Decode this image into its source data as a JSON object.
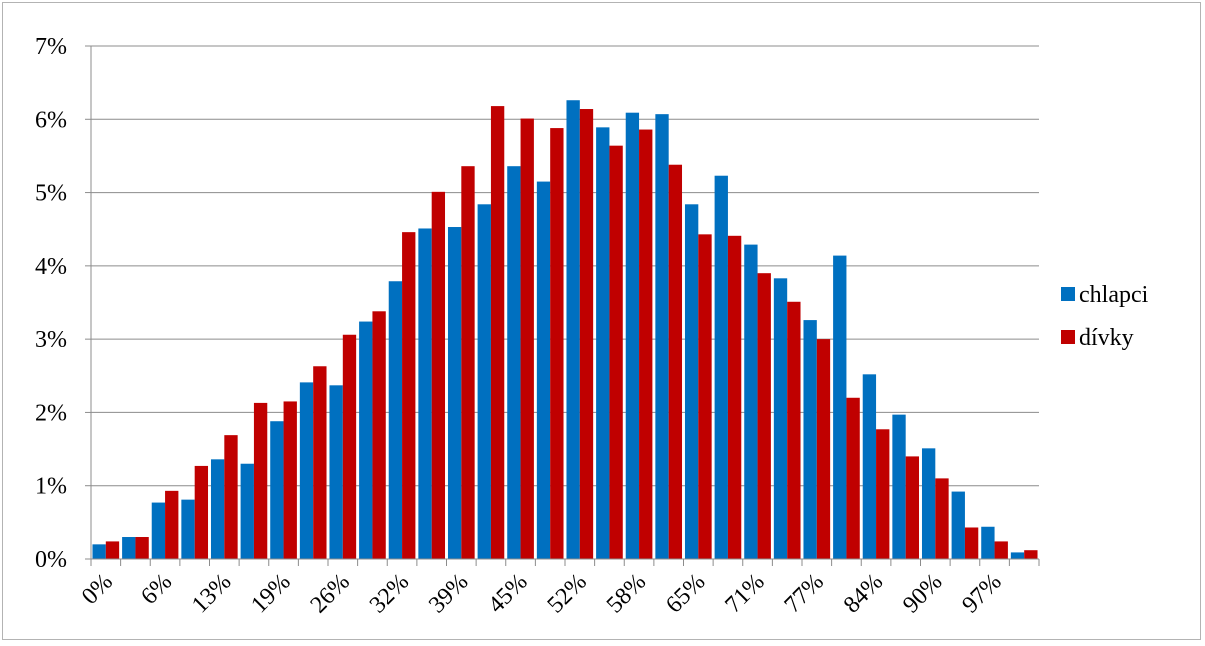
{
  "chart_data": {
    "type": "bar",
    "title": "",
    "xlabel": "",
    "ylabel": "",
    "ylim": [
      0,
      7
    ],
    "y_ticks": [
      "0%",
      "1%",
      "2%",
      "3%",
      "4%",
      "5%",
      "6%",
      "7%"
    ],
    "x_tick_labels": [
      "0%",
      "6%",
      "13%",
      "19%",
      "26%",
      "32%",
      "39%",
      "45%",
      "52%",
      "58%",
      "65%",
      "71%",
      "77%",
      "84%",
      "90%",
      "97%"
    ],
    "grid": "horizontal",
    "legend_position": "right",
    "categories_count": 32,
    "series": [
      {
        "name": "chlapci",
        "color": "#0070C0",
        "values": [
          0.2,
          0.3,
          0.77,
          0.81,
          1.36,
          1.3,
          1.88,
          2.41,
          2.37,
          3.24,
          3.79,
          4.51,
          4.53,
          4.84,
          5.36,
          5.15,
          6.26,
          5.89,
          6.09,
          6.07,
          4.84,
          5.23,
          4.29,
          3.83,
          3.26,
          4.14,
          2.52,
          1.97,
          1.51,
          0.92,
          0.44,
          0.09
        ]
      },
      {
        "name": "dívky",
        "color": "#C00000",
        "values": [
          0.24,
          0.3,
          0.93,
          1.27,
          1.69,
          2.13,
          2.15,
          2.63,
          3.06,
          3.38,
          4.46,
          5.01,
          5.36,
          6.18,
          6.01,
          5.88,
          6.14,
          5.64,
          5.86,
          5.38,
          4.43,
          4.41,
          3.9,
          3.51,
          3.0,
          2.2,
          1.77,
          1.4,
          1.1,
          0.43,
          0.24,
          0.12
        ]
      }
    ]
  }
}
